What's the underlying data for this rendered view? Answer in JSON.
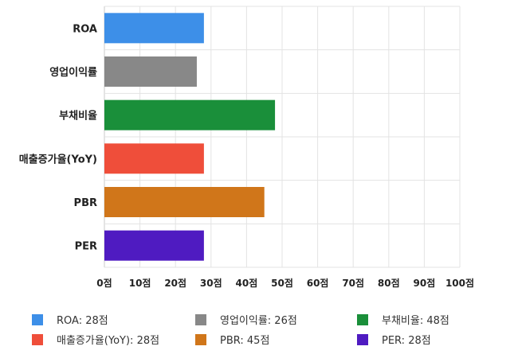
{
  "chart_data": {
    "type": "bar",
    "orientation": "horizontal",
    "title": "",
    "xlabel": "",
    "ylabel": "",
    "categories": [
      "ROA",
      "영업이익률",
      "부채비율",
      "매출증가율(YoY)",
      "PBR",
      "PER"
    ],
    "values": [
      28,
      26,
      48,
      28,
      45,
      28
    ],
    "colors": [
      "#3d8fe8",
      "#888888",
      "#1a8f3a",
      "#ef4e3a",
      "#d0761a",
      "#4f1bc1"
    ],
    "xlim": [
      0,
      100
    ],
    "x_ticks": [
      0,
      10,
      20,
      30,
      40,
      50,
      60,
      70,
      80,
      90,
      100
    ],
    "tick_suffix": "점",
    "grid": true,
    "legend_position": "bottom",
    "legend_entries": [
      "ROA: 28점",
      "영업이익률: 26점",
      "부채비율: 48점",
      "매출증가율(YoY): 28점",
      "PBR: 45점",
      "PER: 28점"
    ]
  }
}
